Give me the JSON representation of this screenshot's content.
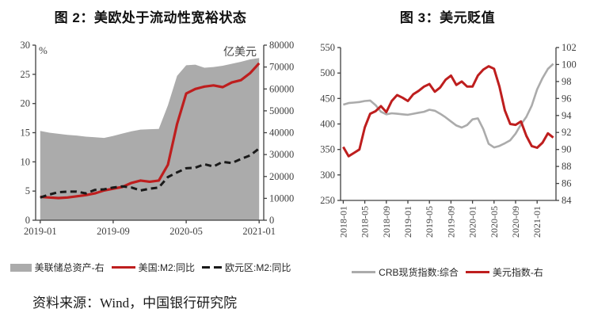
{
  "source_note": "资料来源：Wind，中国银行研究院",
  "chart_data": [
    {
      "type": "area-line-combo",
      "title": "图 2：美欧处于流动性宽裕状态",
      "left_axis": {
        "unit": "%",
        "min": 0,
        "max": 30,
        "step": 5
      },
      "right_axis": {
        "unit": "亿美元",
        "min": 0,
        "max": 80000,
        "step": 10000
      },
      "x_range": "2019-01 to 2021-01, monthly",
      "x_ticks": [
        {
          "index": 0,
          "label": "2019-01"
        },
        {
          "index": 8,
          "label": "2019-09"
        },
        {
          "index": 16,
          "label": "2020-05"
        },
        {
          "index": 24,
          "label": "2021-01"
        }
      ],
      "legend_position": "bottom",
      "series": [
        {
          "id": "fed-total-assets",
          "name": "美联储总资产-右",
          "axis": "right",
          "style": "area",
          "color": "#ABABAB",
          "width": 0,
          "values": [
            40800,
            40000,
            39500,
            39000,
            38700,
            38200,
            37900,
            37600,
            38500,
            39600,
            40600,
            41400,
            41600,
            41700,
            52500,
            66000,
            70800,
            71100,
            69700,
            70000,
            70600,
            71500,
            72400,
            73500,
            74100
          ]
        },
        {
          "id": "us-m2-yoy",
          "name": "美国:M2:同比",
          "axis": "left",
          "style": "line",
          "color": "#BE1E1E",
          "width": 3.2,
          "values": [
            4.0,
            3.9,
            3.8,
            3.9,
            4.1,
            4.3,
            4.6,
            5.1,
            5.4,
            5.7,
            6.4,
            6.8,
            6.6,
            6.8,
            9.5,
            16.5,
            21.7,
            22.5,
            22.9,
            23.1,
            22.8,
            23.6,
            24.0,
            25.2,
            26.9
          ]
        },
        {
          "id": "euro-m2-yoy",
          "name": "欧元区:M2:同比",
          "axis": "left",
          "style": "dashed",
          "color": "#1A1A1A",
          "width": 3,
          "values": [
            3.9,
            4.4,
            4.8,
            4.9,
            4.9,
            4.6,
            5.2,
            5.3,
            5.6,
            5.8,
            5.6,
            5.1,
            5.4,
            5.6,
            7.4,
            8.2,
            8.9,
            9.0,
            9.6,
            9.2,
            10.0,
            9.8,
            10.5,
            11.1,
            12.3
          ]
        }
      ]
    },
    {
      "type": "dual-axis-line",
      "title": "图 3：美元贬值",
      "left_axis": {
        "unit": "",
        "min": 250,
        "max": 550,
        "step": 50
      },
      "right_axis": {
        "unit": "",
        "min": 84,
        "max": 102,
        "step": 2
      },
      "x_range": "2018-01 to 2021-04, monthly",
      "x_ticks": [
        {
          "index": 0,
          "label": "2018-01"
        },
        {
          "index": 4,
          "label": "2018-05"
        },
        {
          "index": 8,
          "label": "2018-09"
        },
        {
          "index": 12,
          "label": "2019-01"
        },
        {
          "index": 16,
          "label": "2019-05"
        },
        {
          "index": 20,
          "label": "2019-09"
        },
        {
          "index": 24,
          "label": "2020-01"
        },
        {
          "index": 28,
          "label": "2020-05"
        },
        {
          "index": 32,
          "label": "2020-09"
        },
        {
          "index": 36,
          "label": "2021-01"
        }
      ],
      "x_label_rotation": -90,
      "legend_position": "bottom",
      "series": [
        {
          "id": "crb-spot-index",
          "name": "CRB现货指数:综合",
          "axis": "left",
          "style": "line",
          "color": "#ABABAB",
          "width": 2.6,
          "values": [
            438,
            441,
            442,
            443,
            445,
            446,
            437,
            424,
            419,
            421,
            420,
            419,
            418,
            420,
            422,
            424,
            428,
            426,
            420,
            413,
            405,
            397,
            393,
            398,
            409,
            411,
            390,
            361,
            354,
            357,
            362,
            368,
            381,
            399,
            414,
            436,
            468,
            490,
            508,
            518
          ]
        },
        {
          "id": "usd-index",
          "name": "美元指数-右",
          "axis": "right",
          "style": "line",
          "color": "#BE1E1E",
          "width": 3,
          "values": [
            90.3,
            89.2,
            89.6,
            90.0,
            92.6,
            94.2,
            94.5,
            95.1,
            94.4,
            95.7,
            96.4,
            96.1,
            95.7,
            96.5,
            96.9,
            97.4,
            97.7,
            96.8,
            97.3,
            98.2,
            98.7,
            97.6,
            98.0,
            97.4,
            97.4,
            98.7,
            99.4,
            99.8,
            99.5,
            97.4,
            94.6,
            93.0,
            92.9,
            93.3,
            91.6,
            90.4,
            90.2,
            90.8,
            91.9,
            91.4
          ]
        }
      ]
    }
  ]
}
